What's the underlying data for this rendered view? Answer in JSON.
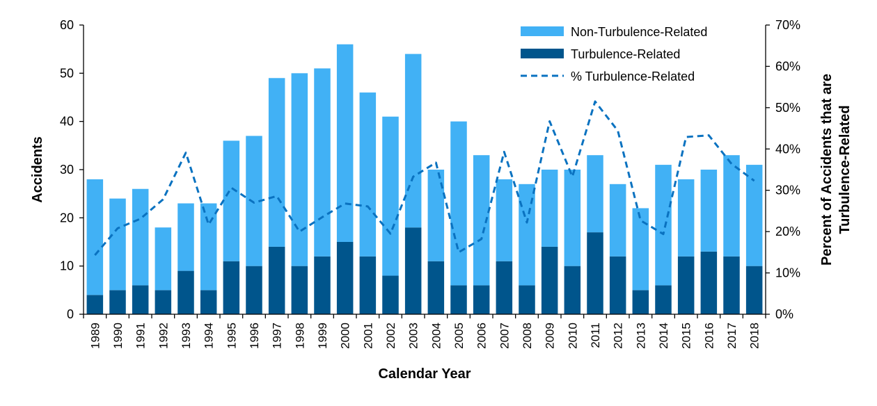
{
  "chart_data": {
    "type": "bar",
    "stacked": true,
    "xlabel": "Calendar Year",
    "ylabel": "Accidents",
    "y2label_line1": "Percent of Accidents that are",
    "y2label_line2": "Turbulence-Related",
    "ylim": [
      0,
      60
    ],
    "y2lim": [
      0,
      70
    ],
    "yticks": [
      "0",
      "10",
      "20",
      "30",
      "40",
      "50",
      "60"
    ],
    "y2ticks": [
      "0%",
      "10%",
      "20%",
      "30%",
      "40%",
      "50%",
      "60%",
      "70%"
    ],
    "legend_position": "top-right",
    "categories": [
      "1989",
      "1990",
      "1991",
      "1992",
      "1993",
      "1994",
      "1995",
      "1996",
      "1997",
      "1998",
      "1999",
      "2000",
      "2001",
      "2002",
      "2003",
      "2004",
      "2005",
      "2006",
      "2007",
      "2008",
      "2009",
      "2010",
      "2011",
      "2012",
      "2013",
      "2014",
      "2015",
      "2016",
      "2017",
      "2018"
    ],
    "totals": [
      28,
      24,
      26,
      18,
      23,
      23,
      36,
      37,
      49,
      50,
      51,
      56,
      46,
      41,
      54,
      30,
      40,
      33,
      28,
      27,
      30,
      30,
      33,
      27,
      22,
      31,
      28,
      30,
      33,
      31
    ],
    "series": [
      {
        "name": "Turbulence-Related",
        "kind": "bar",
        "color": "#00558c",
        "values": [
          4,
          5,
          6,
          5,
          9,
          5,
          11,
          10,
          14,
          10,
          12,
          15,
          12,
          8,
          18,
          11,
          6,
          6,
          11,
          6,
          14,
          10,
          17,
          12,
          5,
          6,
          12,
          13,
          12,
          10
        ]
      },
      {
        "name": "Non-Turbulence-Related",
        "kind": "bar",
        "color": "#41b1f5",
        "values": [
          24,
          19,
          20,
          13,
          14,
          18,
          25,
          27,
          35,
          40,
          39,
          41,
          34,
          33,
          36,
          19,
          34,
          27,
          17,
          21,
          16,
          20,
          16,
          15,
          17,
          25,
          16,
          17,
          21,
          21
        ]
      },
      {
        "name": "% Turbulence-Related",
        "kind": "line",
        "style": "dashed",
        "color": "#0a72c0",
        "axis": "right",
        "values": [
          14.3,
          20.8,
          23.1,
          27.8,
          39.1,
          21.7,
          30.6,
          27.0,
          28.6,
          20.0,
          23.5,
          26.8,
          26.1,
          19.5,
          33.3,
          36.7,
          15.0,
          18.2,
          39.3,
          22.2,
          46.7,
          33.3,
          51.5,
          44.4,
          22.7,
          19.4,
          42.9,
          43.3,
          36.4,
          32.3
        ]
      }
    ],
    "legend": [
      "Non-Turbulence-Related",
      "Turbulence-Related",
      "% Turbulence-Related"
    ]
  }
}
